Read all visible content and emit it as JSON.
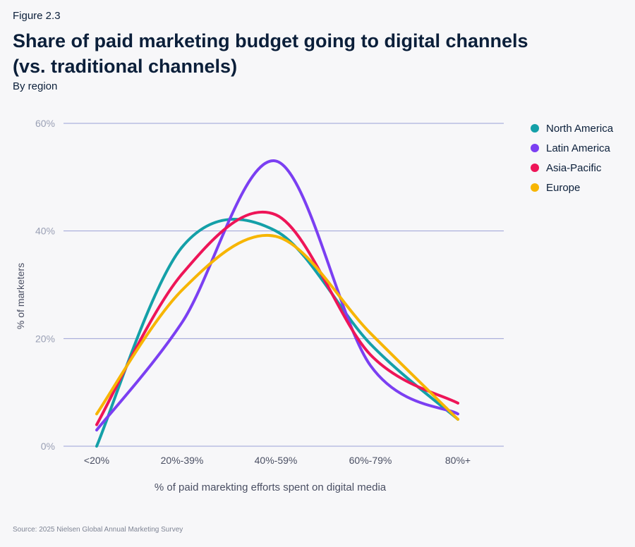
{
  "figure_label": "Figure 2.3",
  "title": "Share of paid marketing budget going to digital channels (vs. traditional channels)",
  "subtitle": "By region",
  "source": "Source: 2025 Nielsen Global Annual Marketing Survey",
  "colors": {
    "north_america": "#14a0a8",
    "latin_america": "#7b3ff2",
    "asia_pacific": "#ee1558",
    "europe": "#f7b500",
    "gridline": "#9aa0d6",
    "axis_text": "#9aa0b5"
  },
  "chart_data": {
    "type": "line",
    "categories": [
      "<20%",
      "20%-39%",
      "40%-59%",
      "60%-79%",
      "80%+"
    ],
    "series": [
      {
        "name": "North America",
        "color": "#14a0a8",
        "values": [
          0,
          37,
          40,
          19,
          5
        ]
      },
      {
        "name": "Latin America",
        "color": "#7b3ff2",
        "values": [
          3,
          23,
          53,
          15,
          6
        ]
      },
      {
        "name": "Asia-Pacific",
        "color": "#ee1558",
        "values": [
          4,
          32,
          43,
          17,
          8
        ]
      },
      {
        "name": "Europe",
        "color": "#f7b500",
        "values": [
          6,
          29,
          39,
          21,
          5
        ]
      }
    ],
    "yticks": [
      "0%",
      "20%",
      "40%",
      "60%"
    ],
    "ylim": [
      0,
      60
    ],
    "xlabel": "% of paid marekting efforts spent on digital media",
    "ylabel": "% of marketers",
    "grid": true,
    "legend_position": "top-right"
  }
}
